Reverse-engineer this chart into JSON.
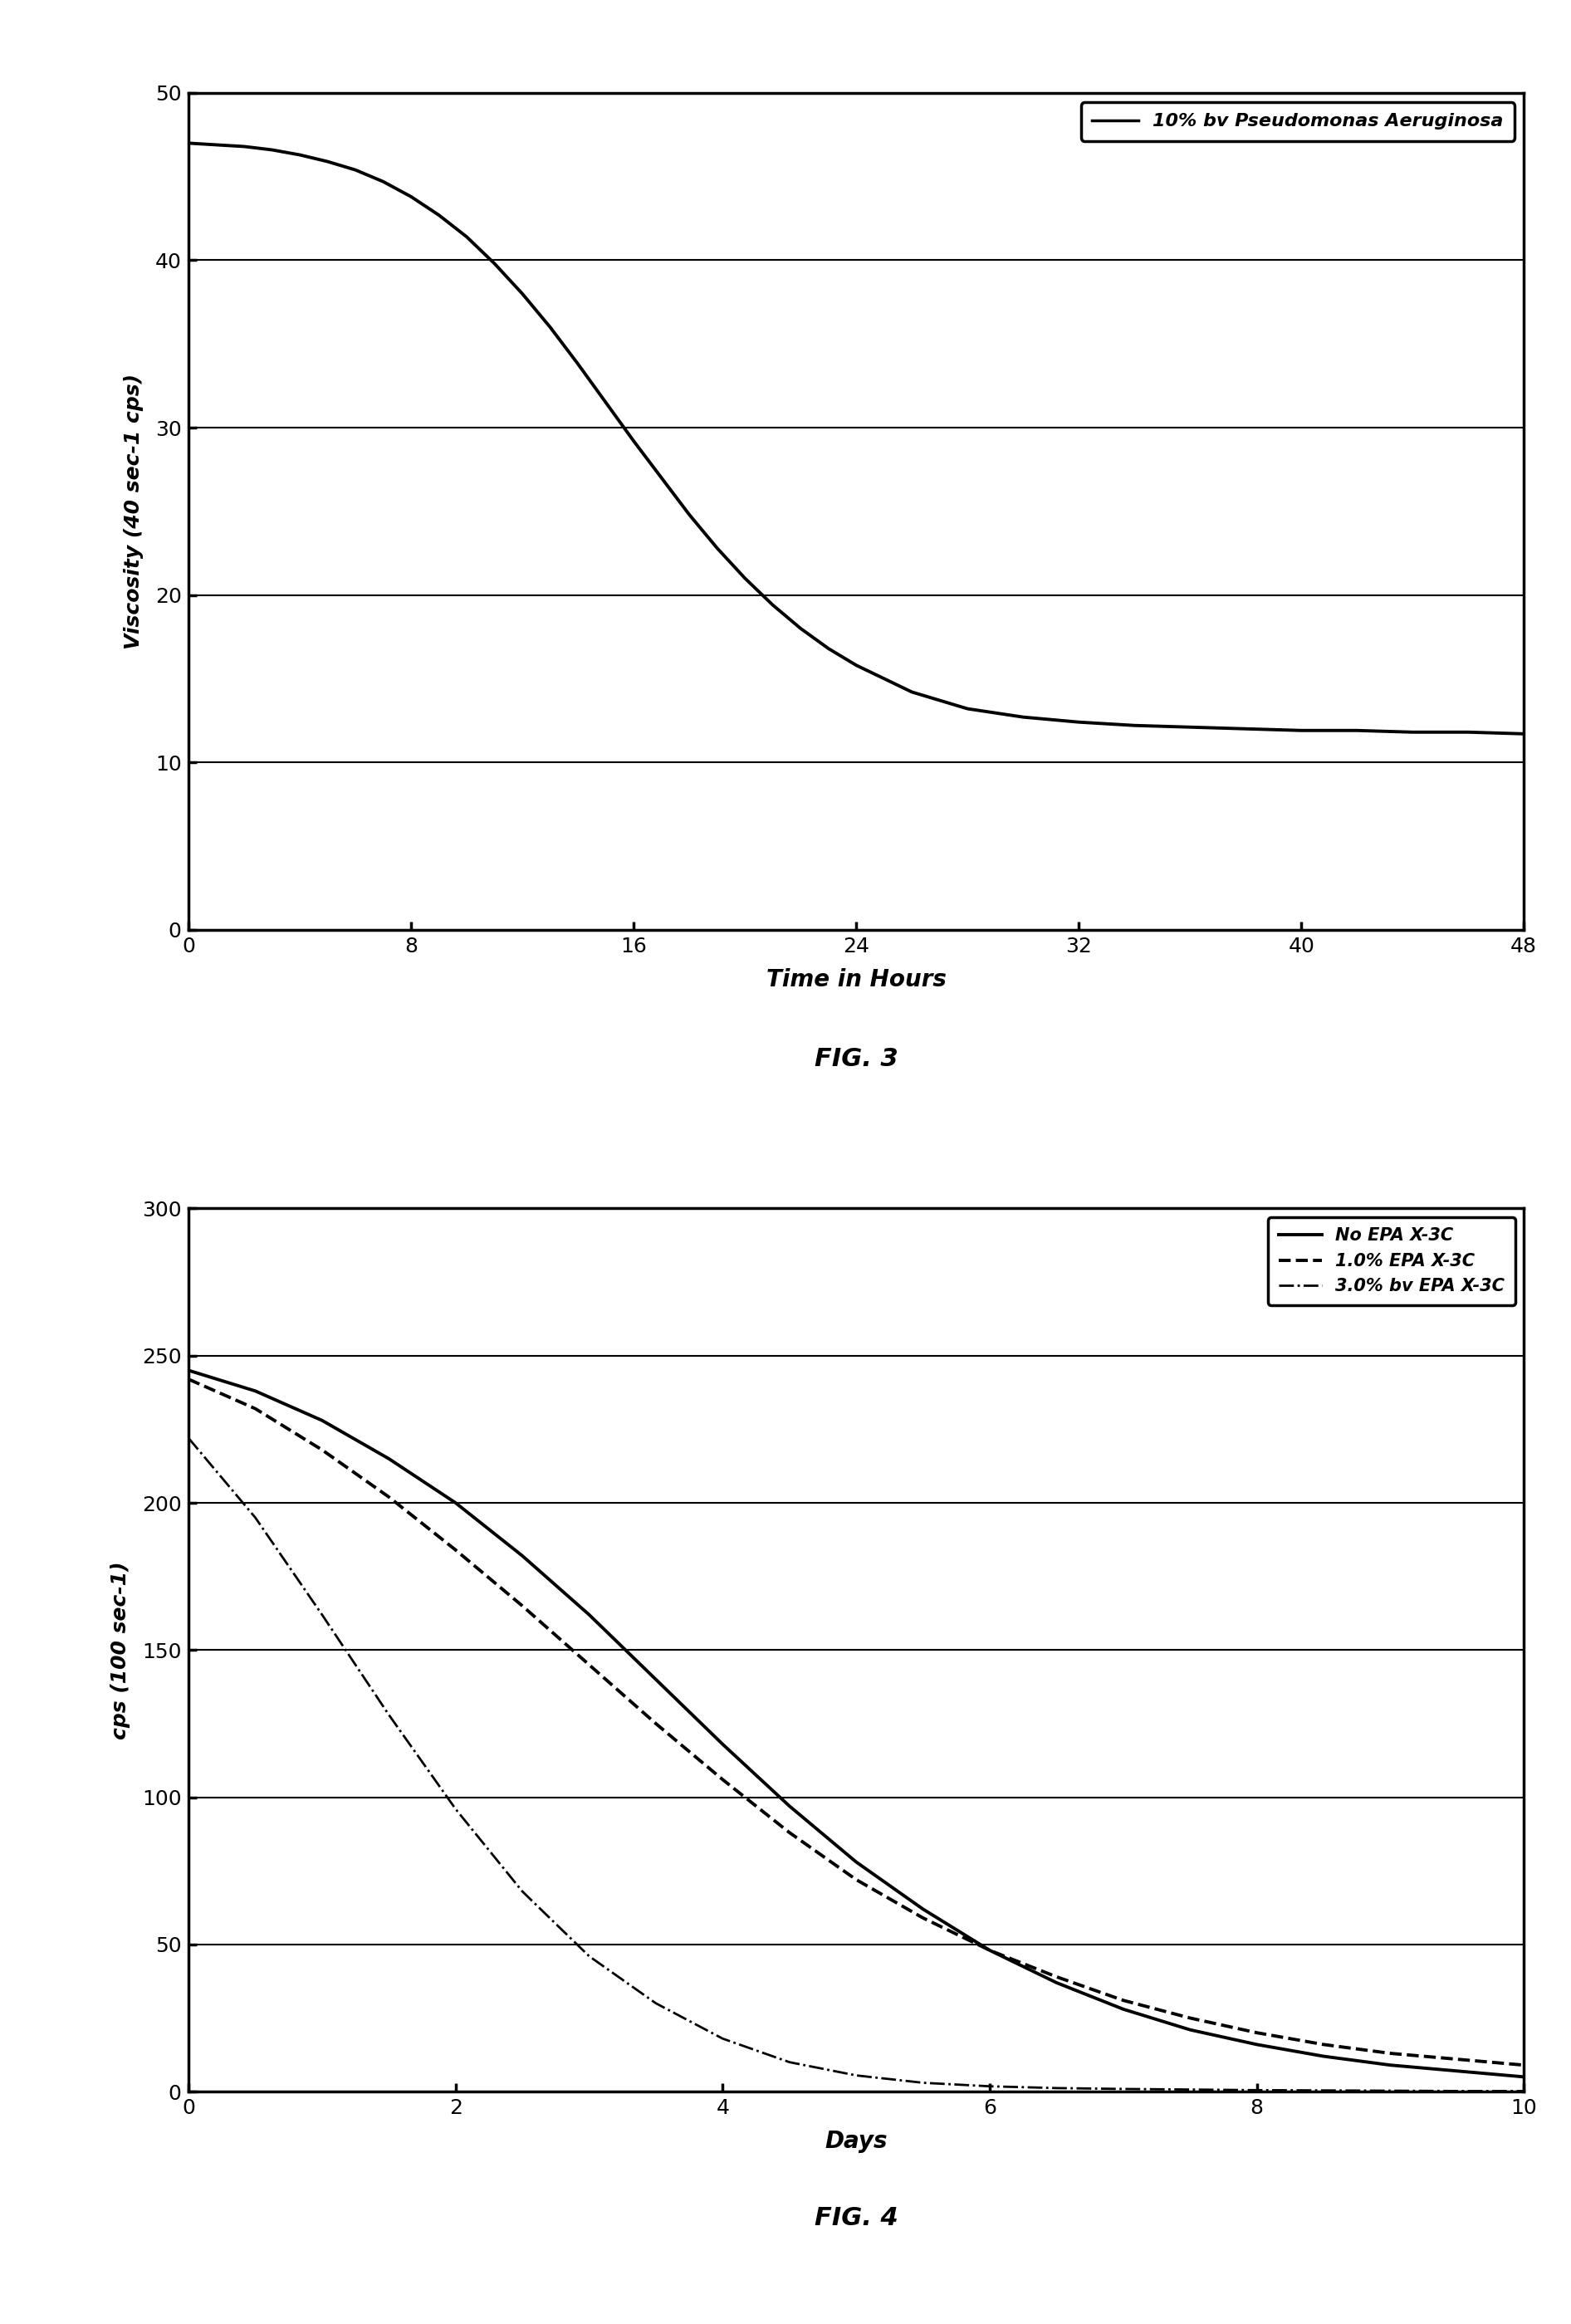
{
  "fig3": {
    "title": "FIG. 3",
    "ylabel": "Viscosity (40 sec-1 cps)",
    "xlabel": "Time in Hours",
    "xlim": [
      0,
      48
    ],
    "ylim": [
      0,
      50
    ],
    "xticks": [
      0,
      8,
      16,
      24,
      32,
      40,
      48
    ],
    "yticks": [
      0,
      10,
      20,
      30,
      40,
      50
    ],
    "legend_label": "10% bv Pseudomonas Aeruginosa",
    "curve_x": [
      0,
      1,
      2,
      3,
      4,
      5,
      6,
      7,
      8,
      9,
      10,
      11,
      12,
      13,
      14,
      15,
      16,
      17,
      18,
      19,
      20,
      21,
      22,
      23,
      24,
      26,
      28,
      30,
      32,
      34,
      36,
      38,
      40,
      42,
      44,
      46,
      48
    ],
    "curve_y": [
      47.0,
      46.9,
      46.8,
      46.6,
      46.3,
      45.9,
      45.4,
      44.7,
      43.8,
      42.7,
      41.4,
      39.8,
      38.0,
      36.0,
      33.8,
      31.5,
      29.2,
      27.0,
      24.8,
      22.8,
      21.0,
      19.4,
      18.0,
      16.8,
      15.8,
      14.2,
      13.2,
      12.7,
      12.4,
      12.2,
      12.1,
      12.0,
      11.9,
      11.9,
      11.8,
      11.8,
      11.7
    ]
  },
  "fig4": {
    "title": "FIG. 4",
    "ylabel": "cps (100 sec-1)",
    "xlabel": "Days",
    "xlim": [
      0,
      10
    ],
    "ylim": [
      0,
      300
    ],
    "xticks": [
      0,
      2,
      4,
      6,
      8,
      10
    ],
    "yticks": [
      0,
      50,
      100,
      150,
      200,
      250,
      300
    ],
    "curves": [
      {
        "label": "No EPA X-3C",
        "linestyle": "solid",
        "x": [
          0,
          0.5,
          1,
          1.5,
          2,
          2.5,
          3,
          3.5,
          4,
          4.5,
          5,
          5.5,
          6,
          6.5,
          7,
          7.5,
          8,
          8.5,
          9,
          9.5,
          10
        ],
        "y": [
          245,
          238,
          228,
          215,
          200,
          182,
          162,
          140,
          118,
          97,
          78,
          62,
          48,
          37,
          28,
          21,
          16,
          12,
          9,
          7,
          5
        ]
      },
      {
        "label": "1.0% EPA X-3C",
        "linestyle": "dashed",
        "x": [
          0,
          0.5,
          1,
          1.5,
          2,
          2.5,
          3,
          3.5,
          4,
          4.5,
          5,
          5.5,
          6,
          6.5,
          7,
          7.5,
          8,
          8.5,
          9,
          9.5,
          10
        ],
        "y": [
          242,
          232,
          218,
          202,
          184,
          165,
          145,
          125,
          106,
          88,
          72,
          59,
          48,
          39,
          31,
          25,
          20,
          16,
          13,
          11,
          9
        ]
      },
      {
        "label": "3.0% bv EPA X-3C",
        "linestyle": "dashdot",
        "x": [
          0,
          0.5,
          1,
          1.5,
          2,
          2.5,
          3,
          3.5,
          4,
          4.5,
          5,
          5.5,
          6,
          6.5,
          7,
          7.5,
          8,
          8.5,
          9,
          9.5,
          10
        ],
        "y": [
          222,
          195,
          162,
          128,
          96,
          68,
          46,
          30,
          18,
          10,
          5.5,
          3,
          1.8,
          1.2,
          0.9,
          0.7,
          0.5,
          0.4,
          0.3,
          0.2,
          0.2
        ]
      }
    ]
  }
}
